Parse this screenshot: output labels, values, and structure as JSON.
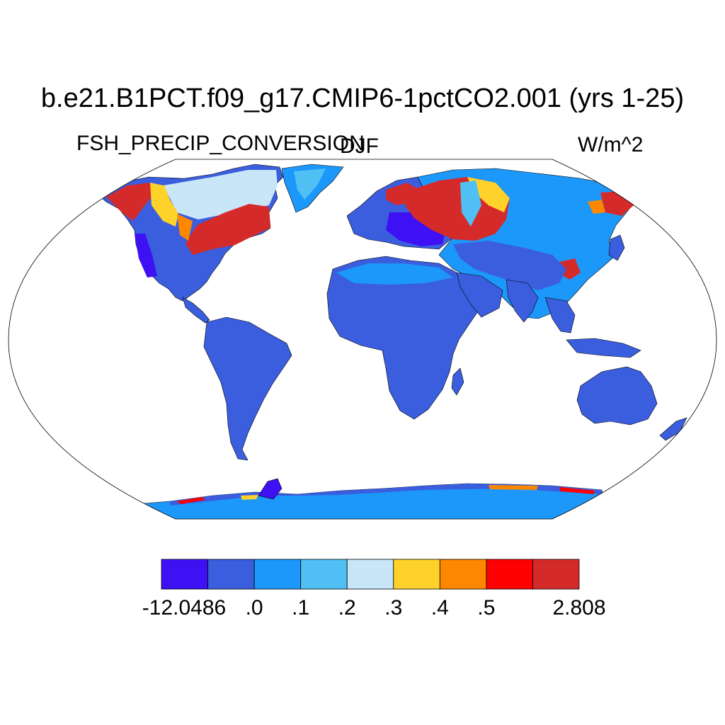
{
  "title": "b.e21.B1PCT.f09_g17.CMIP6-1pctCO2.001 (yrs 1-25)",
  "variable": "FSH_PRECIP_CONVERSION",
  "season": "DJF",
  "units": "W/m^2",
  "colorbar": {
    "colors": [
      "#3e10f4",
      "#3a5ede",
      "#1c98fb",
      "#4fbff4",
      "#c8e6f8",
      "#fed22a",
      "#fe8700",
      "#fe0000",
      "#d52a2a"
    ],
    "labels": [
      "-12.0486",
      ".0",
      ".1",
      ".2",
      ".3",
      ".4",
      ".5",
      "2.808"
    ]
  }
}
